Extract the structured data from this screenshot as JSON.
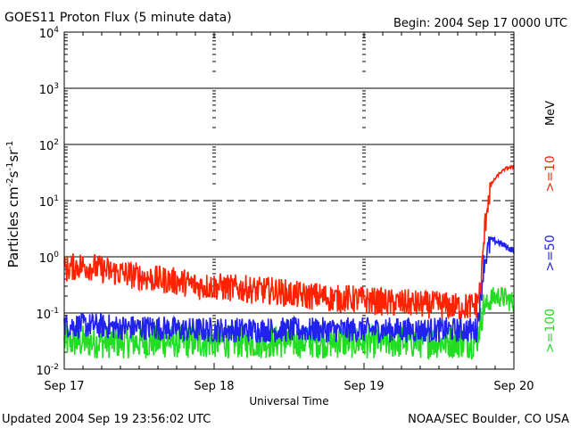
{
  "chart_data": {
    "type": "line",
    "title": "GOES11 Proton Flux (5 minute data)",
    "begin_label": "Begin: 2004 Sep 17 0000 UTC",
    "xlabel": "Universal Time",
    "ylabel": "Particles cm⁻²s⁻¹sr⁻¹",
    "ylabel_parts": [
      "Particles cm",
      "-2",
      "s",
      "-1",
      "sr",
      "-1"
    ],
    "yscale": "log",
    "ylim": [
      0.01,
      10000
    ],
    "xlim": [
      0,
      3
    ],
    "x_unit": "days since 2004 Sep 17 0000 UTC",
    "x_ticks": [
      {
        "value": 0,
        "label": "Sep 17"
      },
      {
        "value": 1,
        "label": "Sep 18"
      },
      {
        "value": 2,
        "label": "Sep 19"
      },
      {
        "value": 3,
        "label": "Sep 20"
      }
    ],
    "y_ticks": [
      {
        "value": 0.01,
        "base": "10",
        "exp": "-2"
      },
      {
        "value": 0.1,
        "base": "10",
        "exp": "-1"
      },
      {
        "value": 1,
        "base": "10",
        "exp": "0"
      },
      {
        "value": 10,
        "base": "10",
        "exp": "1"
      },
      {
        "value": 100,
        "base": "10",
        "exp": "2"
      },
      {
        "value": 1000,
        "base": "10",
        "exp": "3"
      },
      {
        "value": 10000,
        "base": "10",
        "exp": "4"
      }
    ],
    "threshold_lines": [
      {
        "value": 0.1,
        "style": "solid"
      },
      {
        "value": 1,
        "style": "solid"
      },
      {
        "value": 10,
        "style": "dashed"
      },
      {
        "value": 100,
        "style": "solid"
      },
      {
        "value": 1000,
        "style": "solid"
      }
    ],
    "units_label": "MeV",
    "series": [
      {
        "name": ">=10",
        "color": "#ff2200",
        "x": [
          0,
          0.1,
          0.2,
          0.3,
          0.4,
          0.5,
          0.6,
          0.7,
          0.8,
          0.9,
          1.0,
          1.1,
          1.2,
          1.3,
          1.4,
          1.5,
          1.6,
          1.7,
          1.8,
          1.9,
          2.0,
          2.1,
          2.2,
          2.3,
          2.4,
          2.5,
          2.6,
          2.7,
          2.75,
          2.78,
          2.8,
          2.82,
          2.85,
          2.9,
          2.95,
          3.0
        ],
        "values": [
          0.6,
          0.7,
          0.65,
          0.55,
          0.5,
          0.45,
          0.4,
          0.38,
          0.35,
          0.3,
          0.3,
          0.28,
          0.27,
          0.25,
          0.25,
          0.22,
          0.2,
          0.2,
          0.18,
          0.18,
          0.17,
          0.16,
          0.15,
          0.15,
          0.14,
          0.14,
          0.13,
          0.13,
          0.14,
          0.3,
          2,
          8,
          20,
          30,
          38,
          40
        ]
      },
      {
        "name": ">=50",
        "color": "#2222ee",
        "x": [
          0,
          0.2,
          0.4,
          0.6,
          0.8,
          1.0,
          1.2,
          1.4,
          1.6,
          1.8,
          2.0,
          2.2,
          2.4,
          2.6,
          2.75,
          2.78,
          2.8,
          2.85,
          2.9,
          2.95,
          3.0
        ],
        "values": [
          0.06,
          0.06,
          0.055,
          0.055,
          0.05,
          0.05,
          0.05,
          0.05,
          0.05,
          0.05,
          0.05,
          0.05,
          0.05,
          0.05,
          0.05,
          0.2,
          0.8,
          2.0,
          1.8,
          1.5,
          1.3
        ]
      },
      {
        "name": ">=100",
        "color": "#22dd22",
        "x": [
          0,
          0.2,
          0.4,
          0.6,
          0.8,
          1.0,
          1.2,
          1.4,
          1.6,
          1.8,
          2.0,
          2.2,
          2.4,
          2.6,
          2.75,
          2.78,
          2.8,
          2.85,
          2.9,
          2.95,
          3.0
        ],
        "values": [
          0.025,
          0.025,
          0.025,
          0.025,
          0.025,
          0.025,
          0.025,
          0.025,
          0.025,
          0.025,
          0.025,
          0.025,
          0.025,
          0.025,
          0.025,
          0.06,
          0.12,
          0.18,
          0.2,
          0.18,
          0.15
        ]
      }
    ]
  },
  "footer": {
    "updated": "Updated 2004 Sep 19 23:56:02 UTC",
    "source": "NOAA/SEC Boulder, CO USA"
  }
}
